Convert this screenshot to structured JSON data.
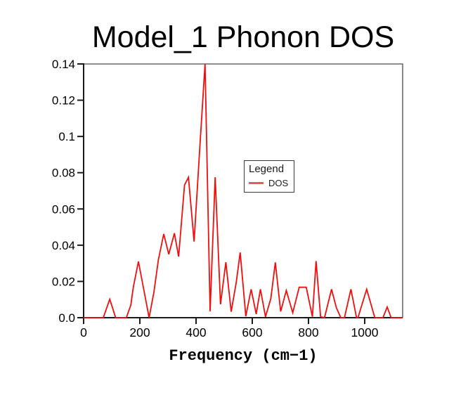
{
  "figure": {
    "title": "Model_1 Phonon DOS",
    "xlabel": "Frequency (cm−1)",
    "background": "#ffffff",
    "frame_color": "#3a3a3a",
    "axis_color": "#1a1a1a",
    "text_color": "#000000"
  },
  "legend": {
    "title": "Legend",
    "entries": [
      {
        "label": "DOS",
        "color": "#f55555"
      }
    ]
  },
  "chart_data": {
    "type": "line",
    "title": "Model_1 Phonon DOS",
    "xlabel": "Frequency (cm-1)",
    "ylabel": "",
    "grid": false,
    "legend_position": "upper-middle-right",
    "xlim": [
      0,
      1135
    ],
    "ylim": [
      0,
      0.14
    ],
    "x_ticks": [
      0,
      200,
      400,
      600,
      800,
      1000
    ],
    "y_tick_values": [
      0,
      0.02,
      0.04,
      0.06,
      0.08,
      0.1,
      0.12,
      0.14
    ],
    "y_tick_labels": [
      "0.0",
      "0.02",
      "0.04",
      "0.06",
      "0.08",
      "0.1",
      "0.12",
      "0.14"
    ],
    "series": [
      {
        "name": "DOS",
        "color": "#f20d0d",
        "x": [
          0,
          35,
          70,
          93,
          114,
          133,
          152,
          168,
          177,
          195,
          214,
          233,
          250,
          266,
          285,
          303,
          323,
          338,
          359,
          373,
          393,
          413,
          432,
          450,
          468,
          487,
          506,
          525,
          543,
          557,
          577,
          596,
          614,
          629,
          647,
          666,
          682,
          701,
          721,
          744,
          767,
          792,
          814,
          827,
          843,
          857,
          882,
          899,
          915,
          928,
          951,
          971,
          976,
          1007,
          1036,
          1065,
          1080,
          1094,
          1115,
          1135
        ],
        "y": [
          0,
          0,
          0,
          0.0102,
          0,
          0,
          0,
          0.007,
          0.017,
          0.031,
          0.0155,
          0,
          0.014,
          0.032,
          0.0462,
          0.035,
          0.0466,
          0.0337,
          0.0732,
          0.0775,
          0.042,
          0.093,
          0.14,
          0.0035,
          0.0775,
          0.0074,
          0.0306,
          0.0033,
          0.0195,
          0.036,
          0.0008,
          0.0157,
          0.002,
          0.0157,
          0.0005,
          0.0105,
          0.0305,
          0.0034,
          0.015,
          0.0027,
          0.0168,
          0.0168,
          0.0005,
          0.0312,
          0.0005,
          0,
          0.0157,
          0.0056,
          0,
          0,
          0.0157,
          0,
          0,
          0.0157,
          0,
          0,
          0.0059,
          0,
          0,
          0
        ]
      }
    ]
  }
}
